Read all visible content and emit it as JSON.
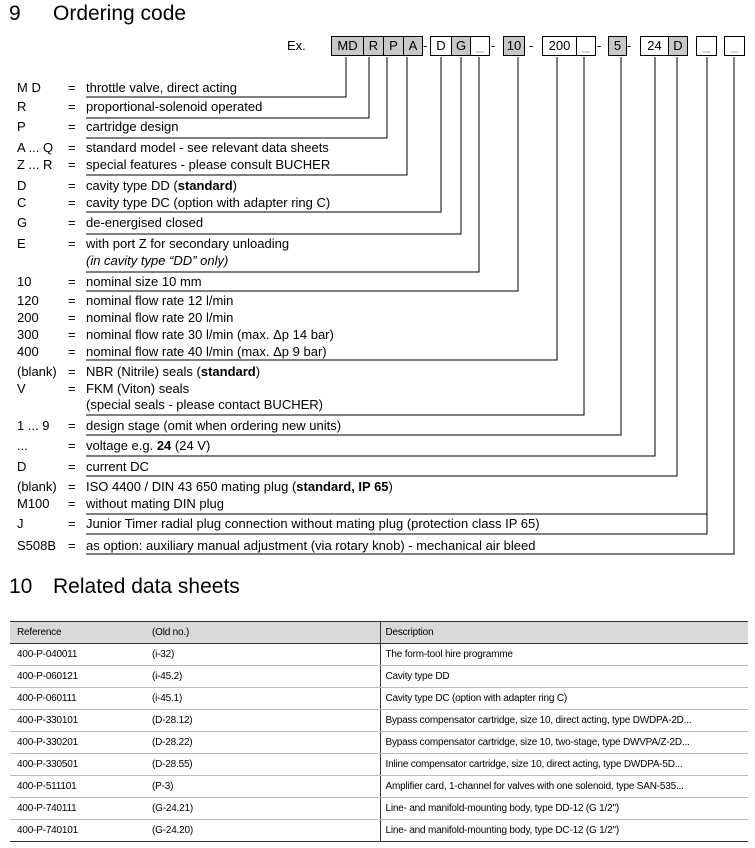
{
  "section9": {
    "number": "9",
    "title": "Ordering code"
  },
  "example_label": "Ex.",
  "code_boxes": [
    {
      "label": "MD",
      "shaded": true
    },
    {
      "label": "R",
      "shaded": true
    },
    {
      "label": "P",
      "shaded": true
    },
    {
      "label": "A",
      "shaded": true
    },
    {
      "label": "D",
      "shaded": false
    },
    {
      "label": "G",
      "shaded": true
    },
    {
      "label": "_",
      "shaded": false
    },
    {
      "label": "10",
      "shaded": true
    },
    {
      "label": "200",
      "shaded": false
    },
    {
      "label": "_",
      "shaded": false
    },
    {
      "label": "5",
      "shaded": true
    },
    {
      "label": "24",
      "shaded": false
    },
    {
      "label": "D",
      "shaded": true
    },
    {
      "label": "_",
      "shaded": false
    },
    {
      "label": "_",
      "shaded": false
    }
  ],
  "dash": "-",
  "equals": "=",
  "codes": [
    {
      "code": "M D",
      "parts": [
        {
          "t": "throttle valve, direct acting"
        }
      ]
    },
    {
      "code": "R",
      "parts": [
        {
          "t": "proportional-solenoid operated"
        }
      ]
    },
    {
      "code": "P",
      "parts": [
        {
          "t": "cartridge design"
        }
      ]
    },
    {
      "code": "A ... Q",
      "parts": [
        {
          "t": "standard model - see relevant data sheets"
        }
      ]
    },
    {
      "code": "Z ... R",
      "parts": [
        {
          "t": "special features - please consult BUCHER"
        }
      ]
    },
    {
      "code": "D",
      "parts": [
        {
          "t": "cavity type DD  ("
        },
        {
          "t": "standard",
          "b": true
        },
        {
          "t": ")"
        }
      ]
    },
    {
      "code": "C",
      "parts": [
        {
          "t": "cavity type DC  (option with adapter ring C)"
        }
      ]
    },
    {
      "code": "G",
      "parts": [
        {
          "t": "de-energised closed"
        }
      ]
    },
    {
      "code": "E",
      "parts": [
        {
          "t": "with port Z for secondary unloading"
        }
      ]
    },
    {
      "code": "",
      "noeq": true,
      "parts": [
        {
          "t": "(in cavity type “DD” only)",
          "i": true
        }
      ]
    },
    {
      "code": "10",
      "parts": [
        {
          "t": "nominal size 10 mm"
        }
      ]
    },
    {
      "code": "120",
      "parts": [
        {
          "t": "nominal flow rate 12 l/min"
        }
      ]
    },
    {
      "code": "200",
      "parts": [
        {
          "t": "nominal flow rate 20 l/min"
        }
      ]
    },
    {
      "code": "300",
      "parts": [
        {
          "t": "nominal flow rate 30 l/min (max. Δp 14 bar)"
        }
      ]
    },
    {
      "code": "400",
      "parts": [
        {
          "t": "nominal flow rate 40 l/min  (max. Δp 9 bar)"
        }
      ]
    },
    {
      "code": "(blank)",
      "parts": [
        {
          "t": "NBR (Nitrile) seals  ("
        },
        {
          "t": "standard",
          "b": true
        },
        {
          "t": ")"
        }
      ]
    },
    {
      "code": "V",
      "parts": [
        {
          "t": "FKM (Viton) seals"
        }
      ]
    },
    {
      "code": "",
      "noeq": true,
      "parts": [
        {
          "t": "(special seals - please contact BUCHER)"
        }
      ]
    },
    {
      "code": "1 ... 9",
      "parts": [
        {
          "t": "design stage (omit when ordering new units)"
        }
      ]
    },
    {
      "code": "...",
      "parts": [
        {
          "t": "voltage e.g. "
        },
        {
          "t": "24",
          "b": true
        },
        {
          "t": " (24 V)"
        }
      ]
    },
    {
      "code": "D",
      "parts": [
        {
          "t": "current  DC"
        }
      ]
    },
    {
      "code": "(blank)",
      "parts": [
        {
          "t": "ISO 4400 / DIN 43 650 mating plug ("
        },
        {
          "t": "standard, IP 65",
          "b": true
        },
        {
          "t": ")"
        }
      ]
    },
    {
      "code": "M100",
      "parts": [
        {
          "t": "without mating DIN plug"
        }
      ]
    },
    {
      "code": "J",
      "parts": [
        {
          "t": "Junior Timer radial plug connection without mating plug (protection class IP 65)"
        }
      ]
    },
    {
      "code": "S508B",
      "parts": [
        {
          "t": "as option: auxiliary manual adjustment (via rotary knob) - mechanical air bleed"
        }
      ]
    }
  ],
  "section10": {
    "number": "10",
    "title": "Related data sheets"
  },
  "table": {
    "headers": [
      "Reference",
      "(Old no.)",
      "Description"
    ],
    "rows": [
      [
        "400-P-040011",
        "(i-32)",
        "The form-tool hire programme"
      ],
      [
        "400-P-060121",
        "(i-45.2)",
        "Cavity type DD"
      ],
      [
        "400-P-060111",
        "(i-45.1)",
        "Cavity type DC (option with adapter ring C)"
      ],
      [
        "400-P-330101",
        "(D-28.12)",
        "Bypass compensator cartridge, size 10, direct acting, type DWDPA-2D..."
      ],
      [
        "400-P-330201",
        "(D-28.22)",
        "Bypass compensator cartridge, size 10, two-stage, type DWVPA/Z-2D..."
      ],
      [
        "400-P-330501",
        "(D-28.55)",
        "Inline compensator cartridge, size 10, direct acting, type DWDPA-5D..."
      ],
      [
        "400-P-511101",
        "(P-3)",
        "Amplifier card, 1-channel for valves with one solenoid, type SAN-535..."
      ],
      [
        "400-P-740111",
        "(G-24.21)",
        "Line- and manifold-mounting body, type DD-12 (G 1/2\")"
      ],
      [
        "400-P-740101",
        "(G-24.20)",
        "Line- and manifold-mounting body, type DC-12 (G 1/2\")"
      ]
    ]
  }
}
